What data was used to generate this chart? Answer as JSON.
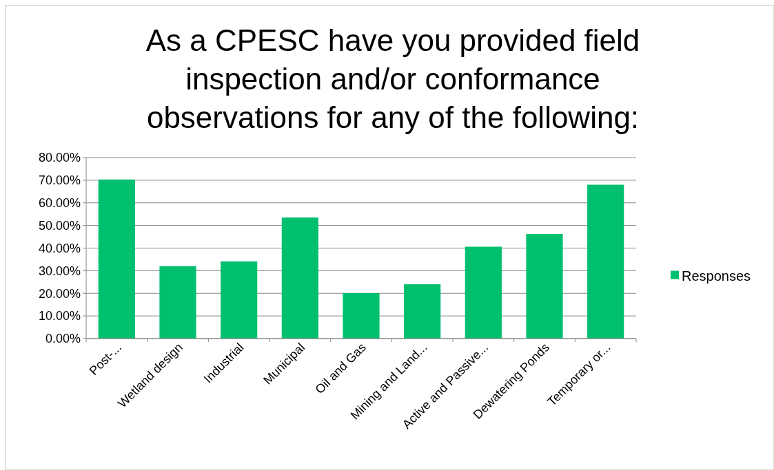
{
  "chart_data": {
    "type": "bar",
    "title": "As a CPESC have you provided field inspection and/or conformance observations for any of the following:",
    "categories": [
      "Post-...",
      "Wetland design",
      "Industrial",
      "Municipal",
      "Oil and Gas",
      "Mining and Land...",
      "Active and Passive...",
      "Dewatering Ponds",
      "Temporary or..."
    ],
    "series": [
      {
        "name": "Responses",
        "color": "#00bf6f",
        "values": [
          70.3,
          32.0,
          34.1,
          53.5,
          20.1,
          24.0,
          40.6,
          46.2,
          68.0
        ]
      }
    ],
    "ylim": [
      0,
      80
    ],
    "yticks": [
      {
        "value": 0,
        "label": "0.00%"
      },
      {
        "value": 10,
        "label": "10.00%"
      },
      {
        "value": 20,
        "label": "20.00%"
      },
      {
        "value": 30,
        "label": "30.00%"
      },
      {
        "value": 40,
        "label": "40.00%"
      },
      {
        "value": 50,
        "label": "50.00%"
      },
      {
        "value": 60,
        "label": "60.00%"
      },
      {
        "value": 70,
        "label": "70.00%"
      },
      {
        "value": 80,
        "label": "80.00%"
      }
    ],
    "grid": "y",
    "legend": "right"
  }
}
